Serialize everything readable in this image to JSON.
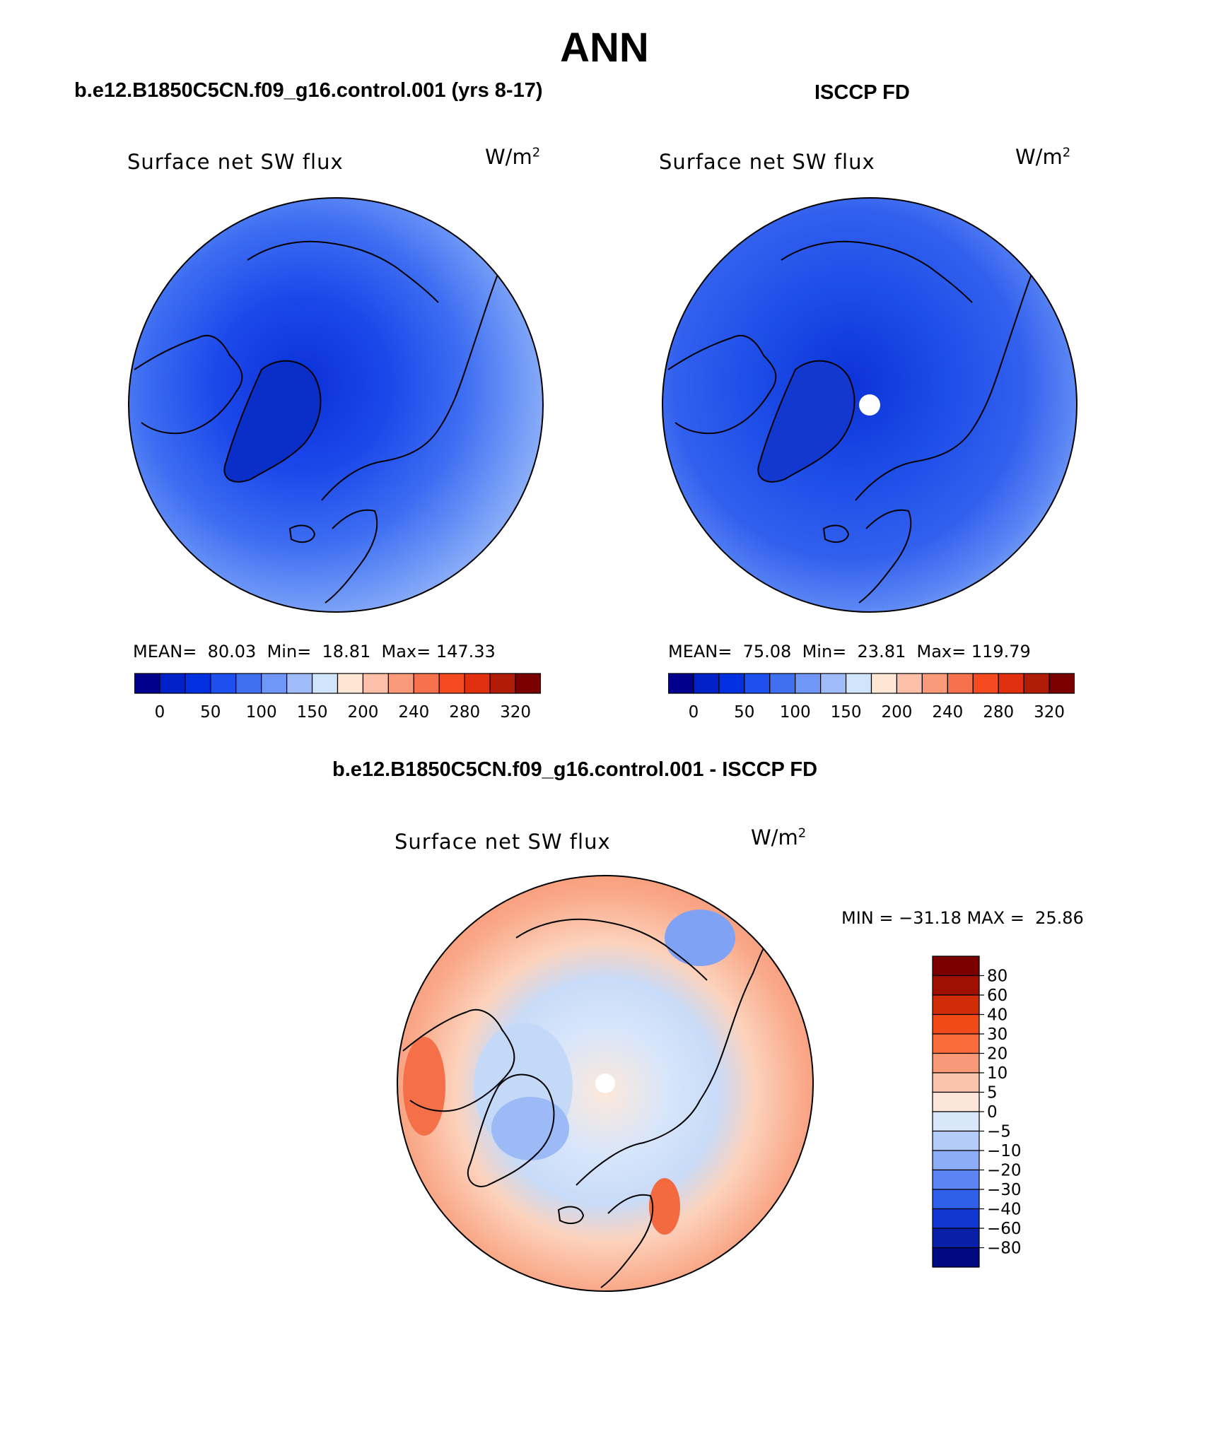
{
  "title": "ANN",
  "panels": [
    {
      "case_title": "b.e12.B1850C5CN.f09_g16.control.001 (yrs 8-17)",
      "plot_title": "Surface net SW flux",
      "units": "W/m",
      "units_exp": "2",
      "stats": "MEAN=  80.03  Min=  18.81  Max= 147.33",
      "pole_hole": false
    },
    {
      "case_title": "ISCCP FD",
      "plot_title": "Surface net SW flux",
      "units": "W/m",
      "units_exp": "2",
      "stats": "MEAN=  75.08  Min=  23.81  Max= 119.79",
      "pole_hole": true
    },
    {
      "case_title": "b.e12.B1850C5CN.f09_g16.control.001 - ISCCP FD",
      "plot_title": "Surface net SW flux",
      "units": "W/m",
      "units_exp": "2",
      "stats": "MIN = −31.18 MAX =  25.86",
      "pole_hole": true
    }
  ],
  "colorbar_abs": {
    "colors": [
      "#00008c",
      "#0020c8",
      "#0030e0",
      "#1e50f0",
      "#4070f0",
      "#7096f8",
      "#a0bcf8",
      "#d0e4fa",
      "#fde6d4",
      "#fcc0a8",
      "#fa9a78",
      "#f7714c",
      "#f54a20",
      "#e03010",
      "#b01c08",
      "#7a0000"
    ],
    "labels": [
      "0",
      "50",
      "100",
      "150",
      "200",
      "240",
      "280",
      "320"
    ]
  },
  "colorbar_diff": {
    "colors": [
      "#7a0000",
      "#a01000",
      "#d02c08",
      "#f04a18",
      "#f86c3c",
      "#f89a78",
      "#fac4ac",
      "#fce6da",
      "#d8e8fa",
      "#b4cdf8",
      "#8cacf6",
      "#5c84f2",
      "#3060ea",
      "#1038d0",
      "#0820a8",
      "#000a80"
    ],
    "labels": [
      "80",
      "60",
      "40",
      "30",
      "20",
      "10",
      "5",
      "0",
      "−5",
      "−10",
      "−20",
      "−30",
      "−40",
      "−60",
      "−80"
    ]
  },
  "colors": {
    "outline": "#000000",
    "pole_hole": "#ffffff"
  }
}
